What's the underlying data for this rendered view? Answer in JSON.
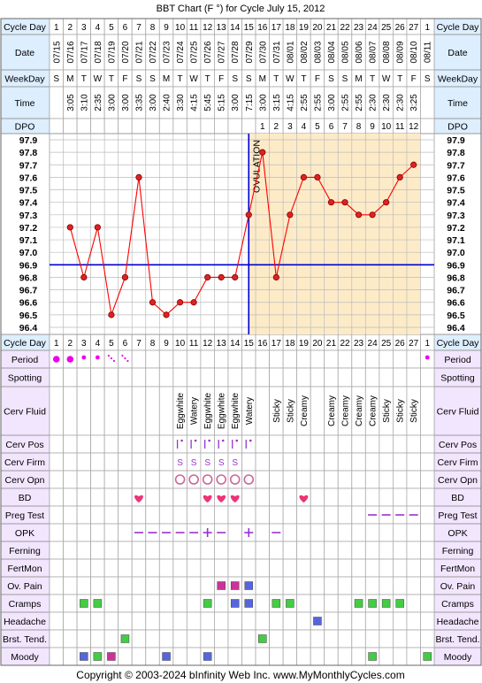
{
  "title": "BBT Chart (F °) for Cycle July 15, 2012",
  "copyright": "Copyright © 2003-2024 bInfinity Web Inc.    www.MyMonthlyCycles.com",
  "row_labels": {
    "cycle_day": "Cycle Day",
    "date": "Date",
    "weekday": "WeekDay",
    "time": "Time",
    "dpo": "DPO",
    "period": "Period",
    "spotting": "Spotting",
    "cerv_fluid": "Cerv Fluid",
    "cerv_pos": "Cerv Pos",
    "cerv_firm": "Cerv Firm",
    "cerv_opn": "Cerv Opn",
    "bd": "BD",
    "preg_test": "Preg Test",
    "opk": "OPK",
    "ferning": "Ferning",
    "fertmon": "FertMon",
    "ov_pain": "Ov. Pain",
    "cramps": "Cramps",
    "headache": "Headache",
    "brst_tend": "Brst. Tend.",
    "moody": "Moody"
  },
  "cycle_days": [
    "1",
    "2",
    "3",
    "4",
    "5",
    "6",
    "7",
    "8",
    "9",
    "10",
    "11",
    "12",
    "13",
    "14",
    "15",
    "16",
    "17",
    "18",
    "19",
    "20",
    "21",
    "22",
    "23",
    "24",
    "25",
    "26",
    "27",
    "1"
  ],
  "dates": [
    "07/15",
    "07/16",
    "07/17",
    "07/18",
    "07/19",
    "07/20",
    "07/21",
    "07/22",
    "07/23",
    "07/24",
    "07/25",
    "07/26",
    "07/27",
    "07/28",
    "07/29",
    "07/30",
    "07/31",
    "08/01",
    "08/02",
    "08/03",
    "08/04",
    "08/05",
    "08/06",
    "08/07",
    "08/08",
    "08/09",
    "08/10",
    "08/11"
  ],
  "weekdays": [
    "S",
    "M",
    "T",
    "W",
    "T",
    "F",
    "S",
    "S",
    "M",
    "T",
    "W",
    "T",
    "F",
    "S",
    "S",
    "M",
    "T",
    "W",
    "T",
    "F",
    "S",
    "S",
    "M",
    "T",
    "W",
    "T",
    "F",
    "S"
  ],
  "times": [
    "",
    "3:05",
    "3:10",
    "2:35",
    "3:00",
    "3:00",
    "3:35",
    "3:00",
    "2:40",
    "3:30",
    "4:15",
    "5:45",
    "5:15",
    "3:00",
    "7:15",
    "3:00",
    "3:15",
    "4:15",
    "2:55",
    "2:55",
    "3:00",
    "2:55",
    "2:55",
    "2:30",
    "2:30",
    "2:30",
    "3:25",
    ""
  ],
  "dpo": [
    "",
    "",
    "",
    "",
    "",
    "",
    "",
    "",
    "",
    "",
    "",
    "",
    "",
    "",
    "",
    "1",
    "2",
    "3",
    "4",
    "5",
    "6",
    "7",
    "8",
    "9",
    "10",
    "11",
    "12",
    ""
  ],
  "y_ticks": [
    "97.9",
    "97.8",
    "97.7",
    "97.6",
    "97.5",
    "97.4",
    "97.3",
    "97.2",
    "97.1",
    "97.0",
    "96.9",
    "96.8",
    "96.7",
    "96.6",
    "96.5",
    "96.4"
  ],
  "ovulation_label": "OVULATION",
  "chart_data": {
    "type": "line",
    "title": "BBT Chart (F °) for Cycle July 15, 2012",
    "x": [
      1,
      2,
      3,
      4,
      5,
      6,
      7,
      8,
      9,
      10,
      11,
      12,
      13,
      14,
      15,
      16,
      17,
      18,
      19,
      20,
      21,
      22,
      23,
      24,
      25,
      26,
      27,
      28
    ],
    "values": [
      null,
      97.2,
      96.8,
      97.2,
      96.5,
      96.8,
      97.6,
      96.6,
      96.5,
      96.6,
      96.6,
      96.8,
      96.8,
      96.8,
      97.3,
      97.8,
      96.8,
      97.3,
      97.6,
      97.6,
      97.4,
      97.4,
      97.3,
      97.3,
      97.4,
      97.6,
      97.7,
      null
    ],
    "ylim": [
      96.4,
      97.9
    ],
    "coverline": 96.9,
    "ovulation_day": 15,
    "colors": {
      "line": "#ff0000",
      "coverline": "#0000cc",
      "luteal_bg": "#fdebc8",
      "grid": "#bbbbbb"
    }
  },
  "cerv_fluid": [
    "",
    "",
    "",
    "",
    "",
    "",
    "",
    "",
    "",
    "Eggwhite",
    "Watery",
    "Eggwhite",
    "Eggwhite",
    "Eggwhite",
    "Watery",
    "",
    "Sticky",
    "Sticky",
    "Creamy",
    "",
    "Creamy",
    "Creamy",
    "Creamy",
    "Creamy",
    "Sticky",
    "Sticky",
    "Sticky",
    ""
  ],
  "period": [
    "big",
    "big",
    "small",
    "small",
    "spot",
    "spot",
    "",
    "",
    "",
    "",
    "",
    "",
    "",
    "",
    "",
    "",
    "",
    "",
    "",
    "",
    "",
    "",
    "",
    "",
    "",
    "",
    "",
    "small"
  ],
  "cerv_pos_days": [
    10,
    11,
    12,
    13,
    14,
    15
  ],
  "cerv_firm_days": [
    10,
    11,
    12,
    13,
    14
  ],
  "cerv_firm_symbol": "S",
  "cerv_opn_days": [
    10,
    11,
    12,
    13,
    14,
    15
  ],
  "bd_days": [
    7,
    12,
    13,
    14,
    19
  ],
  "preg_test_days": [
    24,
    25,
    26,
    27
  ],
  "opk": {
    "neg_days": [
      7,
      8,
      9,
      10,
      11,
      13,
      17
    ],
    "pos_days": [
      12,
      15
    ]
  },
  "ov_pain": [
    {
      "day": 13,
      "color": "#cc3399"
    },
    {
      "day": 14,
      "color": "#cc3399"
    },
    {
      "day": 15,
      "color": "#5566dd"
    }
  ],
  "cramps": [
    {
      "day": 3,
      "color": "#44cc44"
    },
    {
      "day": 4,
      "color": "#44cc44"
    },
    {
      "day": 12,
      "color": "#44cc44"
    },
    {
      "day": 14,
      "color": "#5566dd"
    },
    {
      "day": 15,
      "color": "#5566dd"
    },
    {
      "day": 17,
      "color": "#44cc44"
    },
    {
      "day": 18,
      "color": "#44cc44"
    },
    {
      "day": 23,
      "color": "#44cc44"
    },
    {
      "day": 24,
      "color": "#44cc44"
    },
    {
      "day": 25,
      "color": "#44cc44"
    },
    {
      "day": 26,
      "color": "#44cc44"
    }
  ],
  "headache": [
    {
      "day": 20,
      "color": "#5566dd"
    }
  ],
  "brst_tend": [
    {
      "day": 6,
      "color": "#44cc44"
    },
    {
      "day": 16,
      "color": "#44cc44"
    }
  ],
  "moody": [
    {
      "day": 3,
      "color": "#5566dd"
    },
    {
      "day": 4,
      "color": "#44cc44"
    },
    {
      "day": 5,
      "color": "#cc3399"
    },
    {
      "day": 9,
      "color": "#5566dd"
    },
    {
      "day": 12,
      "color": "#5566dd"
    },
    {
      "day": 24,
      "color": "#44cc44"
    },
    {
      "day": 28,
      "color": "#44cc44"
    }
  ]
}
